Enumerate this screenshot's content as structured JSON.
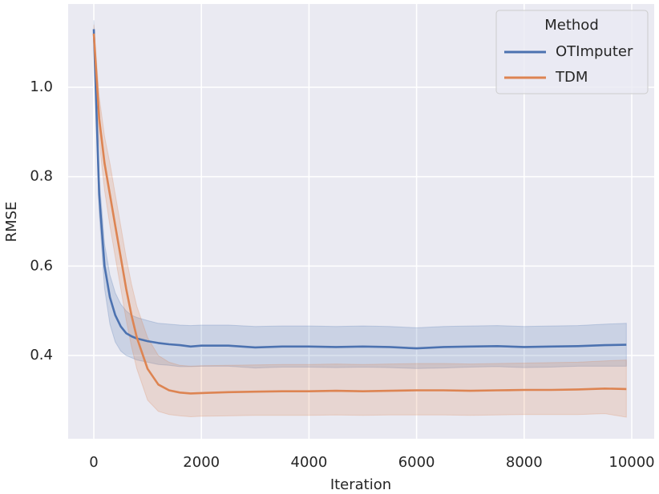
{
  "chart_data": {
    "type": "line",
    "x_label": "Iteration",
    "y_label": "RMSE",
    "x": [
      0,
      100,
      200,
      300,
      400,
      500,
      600,
      700,
      800,
      1000,
      1200,
      1400,
      1600,
      1800,
      2000,
      2500,
      3000,
      3500,
      4000,
      4500,
      5000,
      5500,
      6000,
      6500,
      7000,
      7500,
      8000,
      8500,
      9000,
      9500,
      9900
    ],
    "series": [
      {
        "name": "OTImputer",
        "color": "#4c72b0",
        "values": [
          1.13,
          0.76,
          0.6,
          0.53,
          0.49,
          0.465,
          0.45,
          0.443,
          0.438,
          0.432,
          0.428,
          0.425,
          0.423,
          0.42,
          0.422,
          0.422,
          0.418,
          0.42,
          0.42,
          0.419,
          0.42,
          0.419,
          0.416,
          0.419,
          0.42,
          0.421,
          0.419,
          0.42,
          0.421,
          0.423,
          0.424
        ],
        "lower": [
          1.12,
          0.72,
          0.55,
          0.47,
          0.43,
          0.41,
          0.4,
          0.395,
          0.39,
          0.385,
          0.38,
          0.378,
          0.375,
          0.375,
          0.376,
          0.376,
          0.372,
          0.374,
          0.374,
          0.373,
          0.374,
          0.373,
          0.371,
          0.372,
          0.374,
          0.375,
          0.373,
          0.374,
          0.376,
          0.376,
          0.376
        ],
        "upper": [
          1.15,
          0.8,
          0.65,
          0.58,
          0.54,
          0.515,
          0.5,
          0.49,
          0.485,
          0.478,
          0.472,
          0.47,
          0.468,
          0.467,
          0.468,
          0.468,
          0.465,
          0.466,
          0.466,
          0.465,
          0.466,
          0.465,
          0.462,
          0.465,
          0.466,
          0.467,
          0.465,
          0.466,
          0.467,
          0.47,
          0.472
        ]
      },
      {
        "name": "TDM",
        "color": "#dd8452",
        "values": [
          1.12,
          0.93,
          0.83,
          0.76,
          0.69,
          0.62,
          0.55,
          0.49,
          0.44,
          0.37,
          0.335,
          0.322,
          0.317,
          0.315,
          0.316,
          0.318,
          0.319,
          0.32,
          0.32,
          0.321,
          0.32,
          0.321,
          0.322,
          0.322,
          0.321,
          0.322,
          0.323,
          0.323,
          0.324,
          0.326,
          0.325
        ],
        "lower": [
          1.1,
          0.88,
          0.77,
          0.69,
          0.62,
          0.55,
          0.48,
          0.42,
          0.37,
          0.3,
          0.275,
          0.268,
          0.265,
          0.263,
          0.264,
          0.265,
          0.266,
          0.266,
          0.266,
          0.267,
          0.266,
          0.267,
          0.267,
          0.267,
          0.266,
          0.267,
          0.268,
          0.268,
          0.268,
          0.27,
          0.262
        ],
        "upper": [
          1.14,
          0.98,
          0.89,
          0.83,
          0.76,
          0.69,
          0.62,
          0.56,
          0.51,
          0.44,
          0.4,
          0.385,
          0.378,
          0.376,
          0.377,
          0.378,
          0.379,
          0.38,
          0.38,
          0.381,
          0.38,
          0.381,
          0.382,
          0.382,
          0.381,
          0.382,
          0.383,
          0.384,
          0.385,
          0.388,
          0.39
        ]
      }
    ],
    "xlim": [
      -477,
      10417
    ],
    "ylim": [
      0.2137,
      1.1863
    ],
    "xticks": [
      0,
      2000,
      4000,
      6000,
      8000,
      10000
    ],
    "yticks": [
      {
        "value": 0.4,
        "label": "0.4"
      },
      {
        "value": 0.6,
        "label": "0.6"
      },
      {
        "value": 0.8,
        "label": "0.8"
      },
      {
        "value": 1.0,
        "label": "1.0"
      }
    ],
    "grid": true,
    "legend_title": "Method",
    "legend_position": "upper right"
  }
}
